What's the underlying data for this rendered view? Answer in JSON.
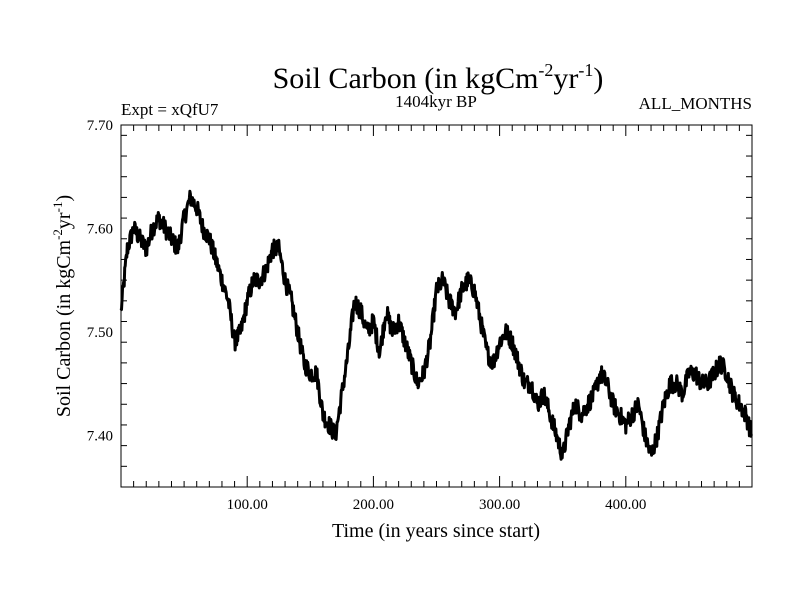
{
  "chart_data": {
    "type": "line",
    "title_main": "Soil Carbon (in kgCm",
    "title_sup1": "-2",
    "title_mid": "yr",
    "title_sup2": "-1",
    "title_end": ")",
    "left_label": "Expt = xQfU7",
    "center_label": "1404kyr BP",
    "right_label": "ALL_MONTHS",
    "xlabel": "Time (in years since start)",
    "ylabel_main": "Soil Carbon (in kgCm",
    "ylabel_sup1": "-2",
    "ylabel_mid": "yr",
    "ylabel_sup2": "-1",
    "ylabel_end": ")",
    "xlim": [
      0,
      500
    ],
    "ylim": [
      7.35,
      7.7
    ],
    "x_ticks": [
      100,
      200,
      300,
      400
    ],
    "x_tick_labels": [
      "100.00",
      "200.00",
      "300.00",
      "400.00"
    ],
    "y_ticks": [
      7.4,
      7.5,
      7.6,
      7.7
    ],
    "y_tick_labels": [
      "7.40",
      "7.50",
      "7.60",
      "7.70"
    ],
    "line_color": "#000000",
    "series": [
      {
        "x": [
          0,
          5,
          10,
          15,
          20,
          25,
          30,
          35,
          40,
          45,
          50,
          55,
          60,
          65,
          70,
          75,
          80,
          85,
          90,
          95,
          100,
          105,
          110,
          115,
          120,
          125,
          130,
          135,
          140,
          145,
          150,
          155,
          160,
          165,
          170,
          175,
          180,
          185,
          190,
          195,
          200,
          205,
          210,
          215,
          220,
          225,
          230,
          235,
          240,
          245,
          250,
          255,
          260,
          265,
          270,
          275,
          280,
          285,
          290,
          295,
          300,
          305,
          310,
          315,
          320,
          325,
          330,
          335,
          340,
          345,
          350,
          355,
          360,
          365,
          370,
          375,
          380,
          385,
          390,
          395,
          400,
          405,
          410,
          415,
          420,
          425,
          430,
          435,
          440,
          445,
          450,
          455,
          460,
          465,
          470,
          475,
          480,
          485,
          490,
          495,
          500
        ],
        "values": [
          7.52,
          7.58,
          7.6,
          7.59,
          7.58,
          7.6,
          7.61,
          7.6,
          7.59,
          7.58,
          7.61,
          7.63,
          7.62,
          7.6,
          7.59,
          7.57,
          7.55,
          7.53,
          7.49,
          7.5,
          7.53,
          7.55,
          7.55,
          7.56,
          7.58,
          7.58,
          7.55,
          7.53,
          7.5,
          7.47,
          7.46,
          7.46,
          7.42,
          7.41,
          7.4,
          7.44,
          7.48,
          7.53,
          7.52,
          7.5,
          7.51,
          7.48,
          7.52,
          7.5,
          7.51,
          7.49,
          7.47,
          7.45,
          7.46,
          7.49,
          7.54,
          7.55,
          7.53,
          7.52,
          7.54,
          7.55,
          7.54,
          7.51,
          7.48,
          7.47,
          7.49,
          7.5,
          7.49,
          7.47,
          7.45,
          7.45,
          7.43,
          7.44,
          7.42,
          7.4,
          7.38,
          7.41,
          7.43,
          7.42,
          7.43,
          7.44,
          7.46,
          7.45,
          7.43,
          7.42,
          7.41,
          7.42,
          7.43,
          7.4,
          7.38,
          7.4,
          7.43,
          7.45,
          7.45,
          7.44,
          7.46,
          7.46,
          7.45,
          7.45,
          7.46,
          7.47,
          7.46,
          7.44,
          7.43,
          7.42,
          7.4
        ]
      }
    ]
  }
}
